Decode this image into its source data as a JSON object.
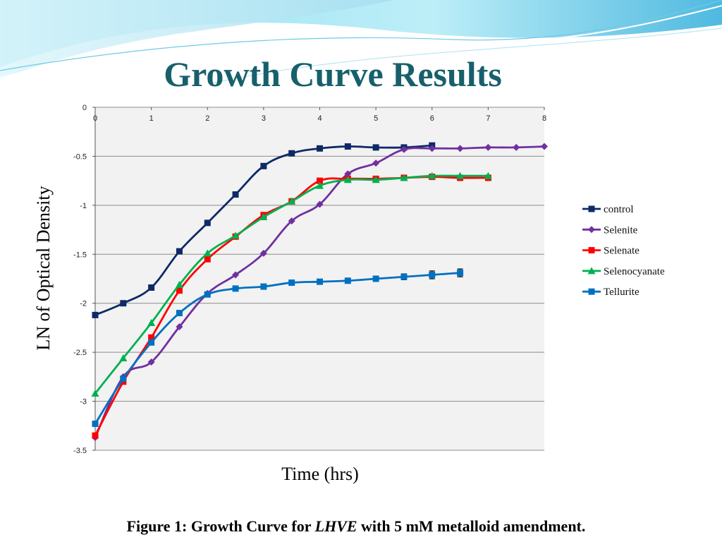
{
  "slide": {
    "title": "Growth Curve Results",
    "caption": {
      "prefix": "Figure 1: Growth Curve for ",
      "organism": "LHVE",
      "suffix": " with 5 mM metalloid amendment."
    }
  },
  "colors": {
    "title": "#17606b",
    "plot_background": "#f2f2f2",
    "grid": "#8c8c8c"
  },
  "chart_data": {
    "type": "line",
    "title": "",
    "xlabel": "Time (hrs)",
    "ylabel": "LN of Optical Density",
    "xlim": [
      0,
      8
    ],
    "ylim": [
      -3.5,
      0
    ],
    "x_ticks": [
      0,
      1,
      2,
      3,
      4,
      5,
      6,
      7,
      8
    ],
    "y_ticks": [
      0,
      -0.5,
      -1,
      -1.5,
      -2,
      -2.5,
      -3,
      -3.5
    ],
    "grid": "horizontal",
    "legend": "right",
    "series": [
      {
        "name": "control",
        "color": "#0d2a66",
        "marker": "square",
        "x": [
          0,
          0.5,
          1,
          1.5,
          2,
          2.5,
          3,
          3.5,
          4,
          4.5,
          5,
          5.5,
          6
        ],
        "y": [
          -2.12,
          -2.0,
          -1.84,
          -1.47,
          -1.18,
          -0.89,
          -0.6,
          -0.47,
          -0.42,
          -0.4,
          -0.41,
          -0.41,
          -0.39
        ]
      },
      {
        "name": "Selenite",
        "color": "#7030a0",
        "marker": "diamond",
        "x": [
          0,
          0.5,
          1,
          1.5,
          2,
          2.5,
          3,
          3.5,
          4,
          4.5,
          5,
          5.5,
          6,
          6.5,
          7,
          7.5,
          8
        ],
        "y": [
          -3.37,
          -2.75,
          -2.6,
          -2.24,
          -1.9,
          -1.71,
          -1.49,
          -1.16,
          -0.99,
          -0.68,
          -0.57,
          -0.43,
          -0.42,
          -0.42,
          -0.41,
          -0.41,
          -0.4
        ]
      },
      {
        "name": "Selenate",
        "color": "#ff0000",
        "marker": "square",
        "x": [
          0,
          0.5,
          1,
          1.5,
          2,
          2.5,
          3,
          3.5,
          4,
          4.5,
          5,
          5.5,
          6,
          6.5,
          7
        ],
        "y": [
          -3.35,
          -2.8,
          -2.35,
          -1.87,
          -1.55,
          -1.32,
          -1.1,
          -0.96,
          -0.75,
          -0.73,
          -0.73,
          -0.72,
          -0.71,
          -0.72,
          -0.72
        ]
      },
      {
        "name": "Selenocyanate",
        "color": "#00b050",
        "marker": "triangle",
        "x": [
          0,
          0.5,
          1,
          1.5,
          2,
          2.5,
          3,
          3.5,
          4,
          4.5,
          5,
          5.5,
          6,
          6.5,
          7
        ],
        "y": [
          -2.92,
          -2.56,
          -2.2,
          -1.81,
          -1.49,
          -1.31,
          -1.12,
          -0.96,
          -0.8,
          -0.74,
          -0.74,
          -0.72,
          -0.7,
          -0.7,
          -0.7
        ]
      },
      {
        "name": "Tellurite",
        "color": "#0070c0",
        "marker": "square",
        "x": [
          0,
          0.5,
          1,
          1.5,
          2,
          2.5,
          3,
          3.5,
          4,
          4.5,
          5,
          5.5,
          6,
          6.5
        ],
        "y": [
          -3.23,
          -2.77,
          -2.4,
          -2.1,
          -1.91,
          -1.85,
          -1.83,
          -1.79,
          -1.78,
          -1.77,
          -1.75,
          -1.73,
          -1.71,
          -1.69
        ],
        "error_bars": [
          0,
          0,
          0,
          0,
          0,
          0,
          0,
          0,
          0,
          0,
          0.02,
          0.03,
          0.04,
          0.04
        ]
      }
    ]
  }
}
